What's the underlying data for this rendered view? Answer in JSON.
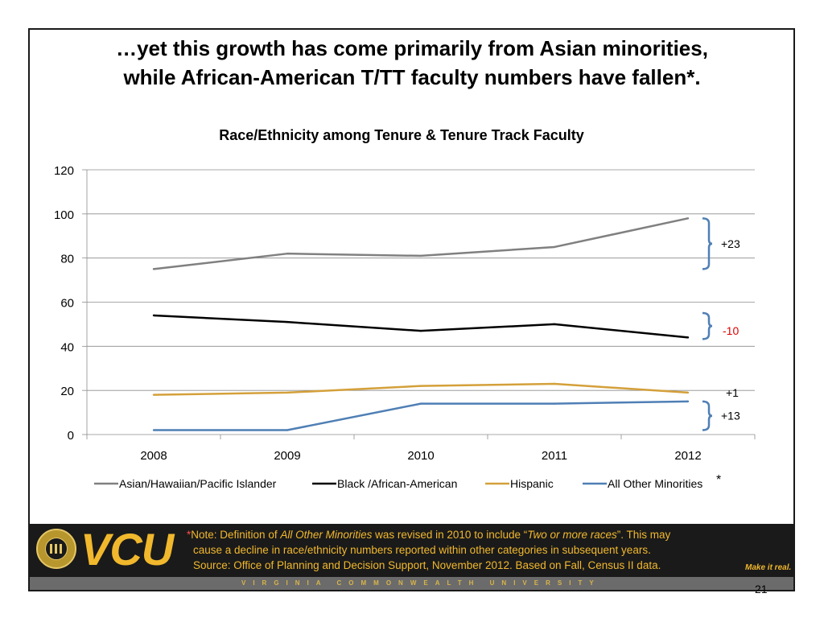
{
  "slide": {
    "title_line1": "…yet this growth has come primarily from Asian minorities,",
    "title_line2": "while African-American T/TT faculty numbers have fallen*.",
    "page_number": "21"
  },
  "chart_data": {
    "type": "line",
    "title": "Race/Ethnicity among Tenure & Tenure Track Faculty",
    "xlabel": "",
    "ylabel": "",
    "categories": [
      "2008",
      "2009",
      "2010",
      "2011",
      "2012"
    ],
    "ylim": [
      0,
      120
    ],
    "yticks": [
      0,
      20,
      40,
      60,
      80,
      100,
      120
    ],
    "grid": true,
    "legend_position": "bottom",
    "legend_suffix": "*",
    "series": [
      {
        "name": "Asian/Hawaiian/Pacific Islander",
        "values": [
          75,
          82,
          81,
          85,
          98
        ],
        "color": "#808080"
      },
      {
        "name": "Black /African-American",
        "values": [
          54,
          51,
          47,
          50,
          44
        ],
        "color": "#000000"
      },
      {
        "name": "Hispanic",
        "values": [
          18,
          19,
          22,
          23,
          19
        ],
        "color": "#d4a03a"
      },
      {
        "name": "All Other Minorities",
        "values": [
          2,
          2,
          14,
          14,
          15
        ],
        "color": "#4f7fb5"
      }
    ],
    "annotations": [
      {
        "text": "+23",
        "color": "#000000",
        "brace_from": 98,
        "brace_to": 75
      },
      {
        "text": "-10",
        "color": "#e00000",
        "brace_from": 54,
        "brace_to": 44
      },
      {
        "text": "+1",
        "color": "#000000"
      },
      {
        "text": "+13",
        "color": "#000000",
        "brace_from": 15,
        "brace_to": 2
      }
    ]
  },
  "footer": {
    "logo_text": "VCU",
    "note_star": "*",
    "note_prefix": "Note: Definition of ",
    "note_term": "All Other Minorities",
    "note_mid": " was revised in 2010 to include “",
    "note_term2": "Two or more races",
    "note_end": "”. This may",
    "note_line2": "cause a decline in race/ethnicity numbers reported within other categories in subsequent years.",
    "note_line3": "Source: Office of Planning and Decision Support, November 2012. Based on Fall, Census II data.",
    "university_name": "VIRGINIA COMMONWEALTH UNIVERSITY",
    "tagline": "Make it real."
  },
  "colors": {
    "vcu_gold": "#f1b82d",
    "footer_black": "#1a1a1a",
    "brace_blue": "#4f7fb5"
  }
}
